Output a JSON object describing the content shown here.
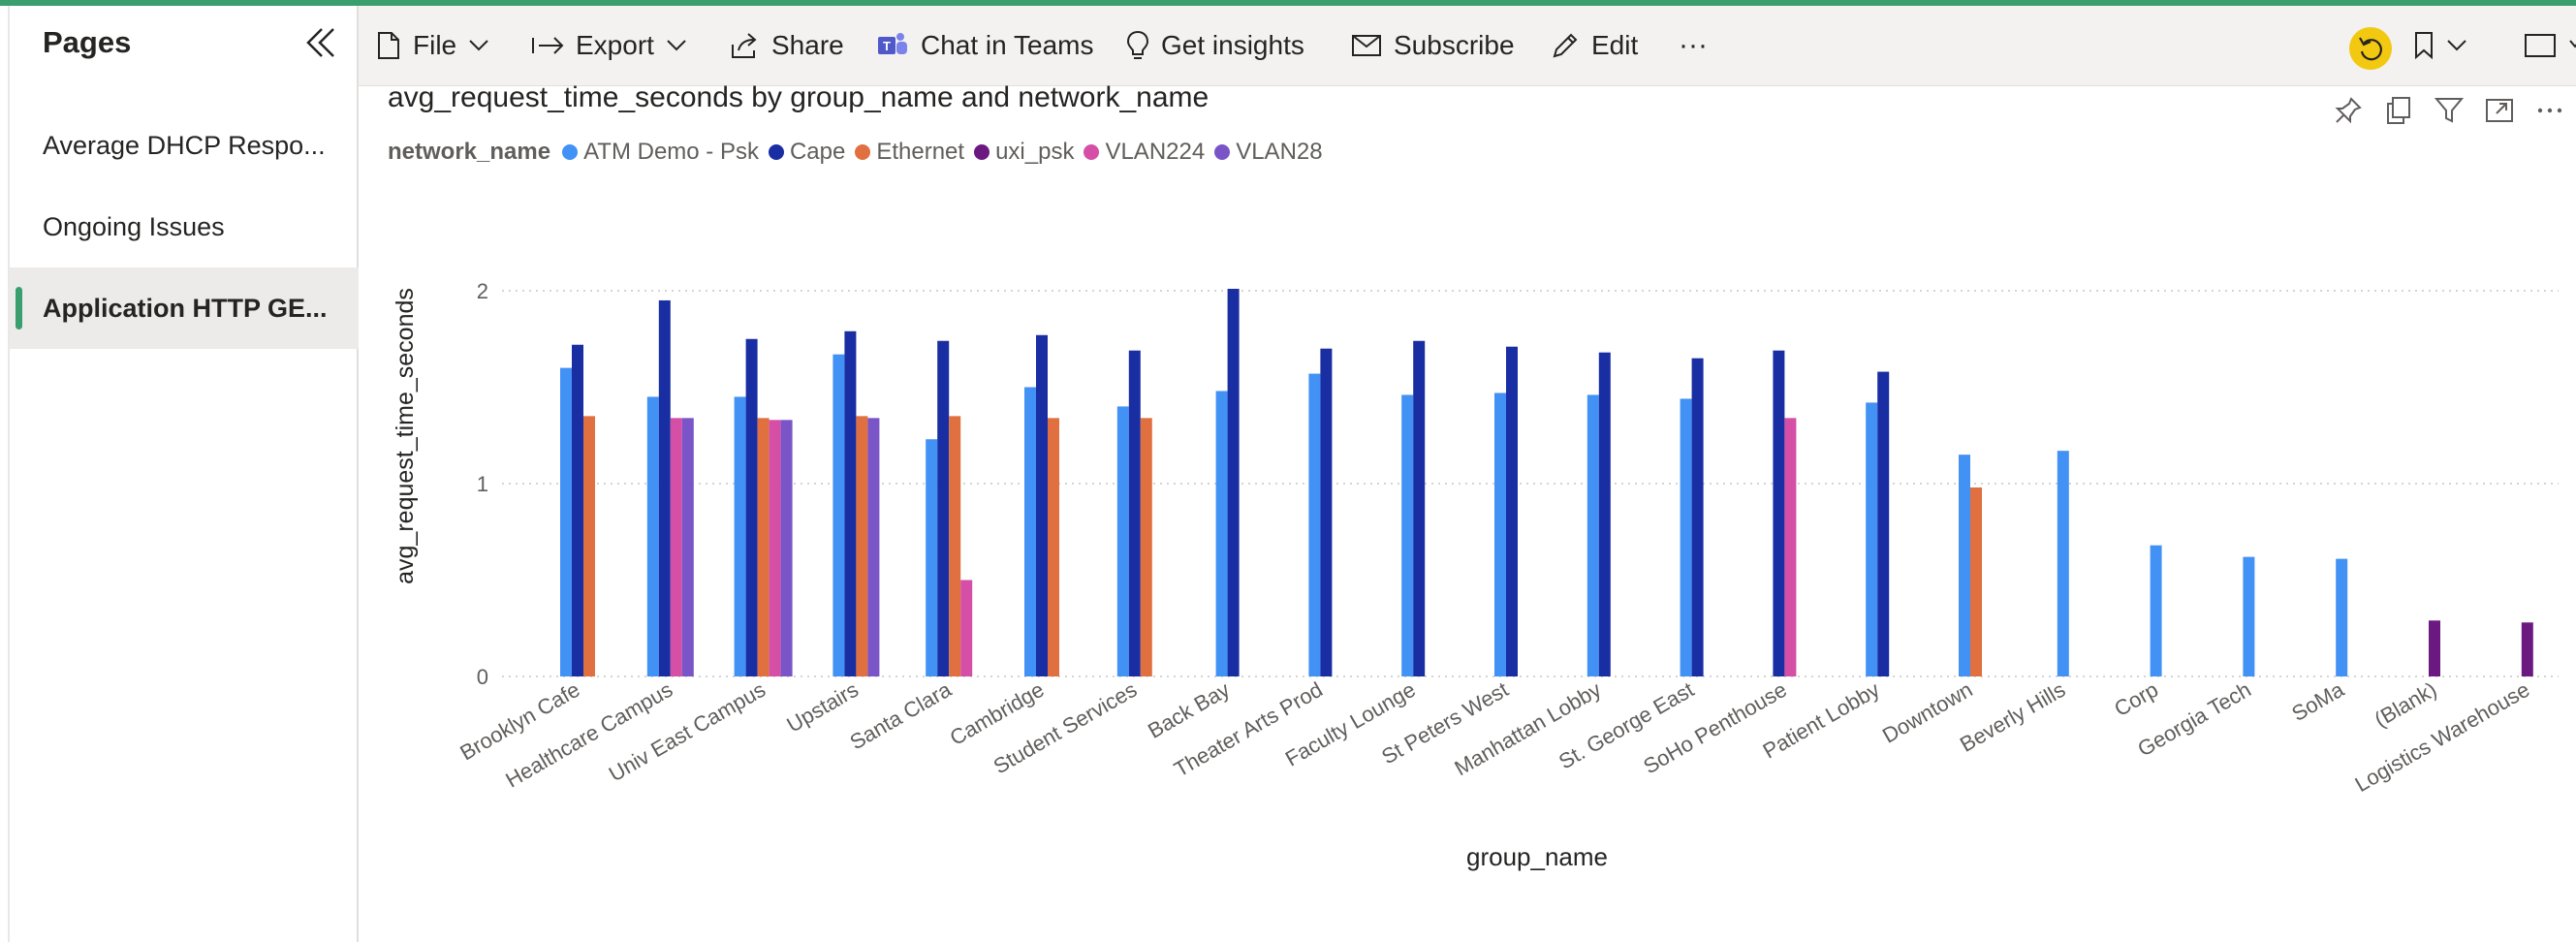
{
  "sidebar": {
    "title": "Pages",
    "items": [
      {
        "label": "Average DHCP Respo..."
      },
      {
        "label": "Ongoing Issues"
      },
      {
        "label": "Application HTTP GE..."
      }
    ]
  },
  "toolbar": {
    "file": "File",
    "export": "Export",
    "share": "Share",
    "chat": "Chat in Teams",
    "insights": "Get insights",
    "subscribe": "Subscribe",
    "edit": "Edit",
    "more": "···"
  },
  "visual": {
    "title": "avg_request_time_seconds by group_name and network_name",
    "legend_title": "network_name"
  },
  "colors": {
    "ATM Demo - Psk": "#4291f5",
    "Cape": "#1a2ea3",
    "Ethernet": "#e07040",
    "uxi_psk": "#6b1880",
    "VLAN224": "#d44fa5",
    "VLAN28": "#7a55c8",
    "accent": "#3a9e6e"
  },
  "chart_data": {
    "type": "bar",
    "title": "avg_request_time_seconds by group_name and network_name",
    "xlabel": "group_name",
    "ylabel": "avg_request_time_seconds",
    "ylim": [
      0,
      2.2
    ],
    "yticks": [
      0,
      1,
      2
    ],
    "grid": true,
    "legend_position": "top-left",
    "categories": [
      "Brooklyn Cafe",
      "Healthcare Campus",
      "Univ East Campus",
      "Upstairs",
      "Santa Clara",
      "Cambridge",
      "Student Services",
      "Back Bay",
      "Theater Arts Prod",
      "Faculty Lounge",
      "St Peters West",
      "Manhattan Lobby",
      "St. George East",
      "SoHo Penthouse",
      "Patient Lobby",
      "Downtown",
      "Beverly Hills",
      "Corp",
      "Georgia Tech",
      "SoMa",
      "(Blank)",
      "Logistics Warehouse"
    ],
    "series": [
      {
        "name": "ATM Demo - Psk",
        "values": [
          1.6,
          1.45,
          1.45,
          1.67,
          1.23,
          1.5,
          1.4,
          1.48,
          1.57,
          1.46,
          1.47,
          1.46,
          1.44,
          null,
          1.42,
          1.15,
          1.17,
          0.68,
          0.62,
          0.61,
          null,
          null
        ]
      },
      {
        "name": "Cape",
        "values": [
          1.72,
          1.95,
          1.75,
          1.79,
          1.74,
          1.77,
          1.69,
          2.01,
          1.7,
          1.74,
          1.71,
          1.68,
          1.65,
          1.69,
          1.58,
          null,
          null,
          null,
          null,
          null,
          null,
          null
        ]
      },
      {
        "name": "Ethernet",
        "values": [
          1.35,
          null,
          1.34,
          1.35,
          1.35,
          1.34,
          1.34,
          null,
          null,
          null,
          null,
          null,
          null,
          null,
          null,
          0.98,
          null,
          null,
          null,
          null,
          null,
          null
        ]
      },
      {
        "name": "uxi_psk",
        "values": [
          null,
          null,
          null,
          null,
          null,
          null,
          null,
          null,
          null,
          null,
          null,
          null,
          null,
          null,
          null,
          null,
          null,
          null,
          null,
          null,
          0.29,
          0.28
        ]
      },
      {
        "name": "VLAN224",
        "values": [
          null,
          1.34,
          1.33,
          null,
          0.5,
          null,
          null,
          null,
          null,
          null,
          null,
          null,
          null,
          1.34,
          null,
          null,
          null,
          null,
          null,
          null,
          null,
          null
        ]
      },
      {
        "name": "VLAN28",
        "values": [
          null,
          1.34,
          1.33,
          1.34,
          null,
          null,
          null,
          null,
          null,
          null,
          null,
          null,
          null,
          null,
          null,
          null,
          null,
          null,
          null,
          null,
          null,
          null
        ]
      }
    ]
  }
}
